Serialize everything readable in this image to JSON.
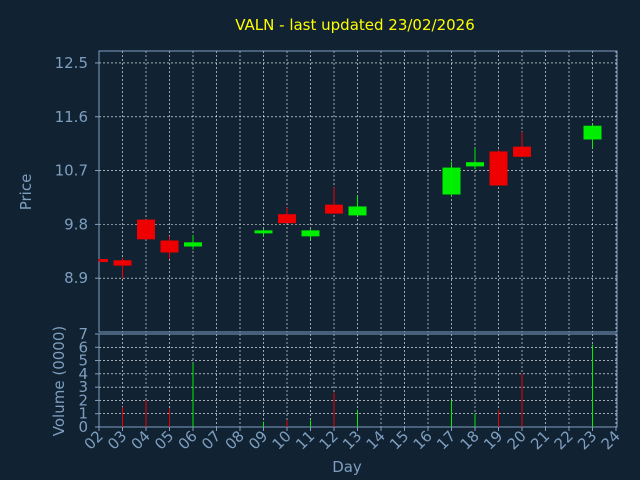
{
  "chart_data": {
    "type": "candlestick",
    "title": "VALN - last updated 23/02/2026",
    "xlabel": "Day",
    "price_panel": {
      "ylabel": "Price",
      "ylim": [
        8.0,
        12.7
      ],
      "yticks": [
        "12.5",
        "11.6",
        "10.7",
        "9.8",
        "8.9"
      ],
      "ytick_values": [
        12.5,
        11.6,
        10.7,
        9.8,
        8.9
      ],
      "grid": true
    },
    "volume_panel": {
      "ylabel": "Volume (0000)",
      "ylim": [
        0,
        7
      ],
      "yticks": [
        "0",
        "1",
        "2",
        "3",
        "4",
        "5",
        "6",
        "7"
      ],
      "grid": true
    },
    "x_ticks": [
      "02",
      "03",
      "04",
      "05",
      "06",
      "07",
      "08",
      "09",
      "10",
      "11",
      "12",
      "13",
      "14",
      "15",
      "16",
      "17",
      "18",
      "19",
      "20",
      "21",
      "22",
      "23",
      "24"
    ],
    "candles": [
      {
        "day": "02",
        "open": 9.22,
        "close": 9.19,
        "high": 9.22,
        "low": 9.19,
        "volume": 0.0
      },
      {
        "day": "03",
        "open": 9.2,
        "close": 9.11,
        "high": 9.24,
        "low": 8.9,
        "volume": 1.5
      },
      {
        "day": "04",
        "open": 9.88,
        "close": 9.55,
        "high": 9.88,
        "low": 9.55,
        "volume": 2.0
      },
      {
        "day": "05",
        "open": 9.53,
        "close": 9.33,
        "high": 9.6,
        "low": 9.22,
        "volume": 1.4
      },
      {
        "day": "06",
        "open": 9.43,
        "close": 9.5,
        "high": 9.62,
        "low": 9.38,
        "volume": 4.8
      },
      {
        "day": "09",
        "open": 9.68,
        "close": 9.7,
        "high": 9.72,
        "low": 9.6,
        "volume": 0.4
      },
      {
        "day": "10",
        "open": 9.97,
        "close": 9.82,
        "high": 10.08,
        "low": 9.82,
        "volume": 0.5
      },
      {
        "day": "11",
        "open": 9.6,
        "close": 9.7,
        "high": 9.72,
        "low": 9.55,
        "volume": 0.5
      },
      {
        "day": "12",
        "open": 10.13,
        "close": 9.98,
        "high": 10.42,
        "low": 9.98,
        "volume": 2.6
      },
      {
        "day": "13",
        "open": 9.95,
        "close": 10.1,
        "high": 10.28,
        "low": 9.95,
        "volume": 1.3
      },
      {
        "day": "17",
        "open": 10.3,
        "close": 10.75,
        "high": 10.85,
        "low": 10.27,
        "volume": 2.0
      },
      {
        "day": "18",
        "open": 10.77,
        "close": 10.84,
        "high": 11.08,
        "low": 10.72,
        "volume": 1.0
      },
      {
        "day": "19",
        "open": 11.02,
        "close": 10.45,
        "high": 11.05,
        "low": 10.45,
        "volume": 1.3
      },
      {
        "day": "20",
        "open": 11.1,
        "close": 10.93,
        "high": 11.35,
        "low": 10.93,
        "volume": 4.0
      },
      {
        "day": "23",
        "open": 11.22,
        "close": 11.45,
        "high": 11.48,
        "low": 11.08,
        "volume": 6.2
      }
    ],
    "colors": {
      "background": "#112233",
      "text": "#7f9fbf",
      "title": "#ffff00",
      "axis": "#7f9fbf",
      "grid": "#ffffff",
      "up": "#00ee00",
      "down": "#ee0000"
    }
  }
}
